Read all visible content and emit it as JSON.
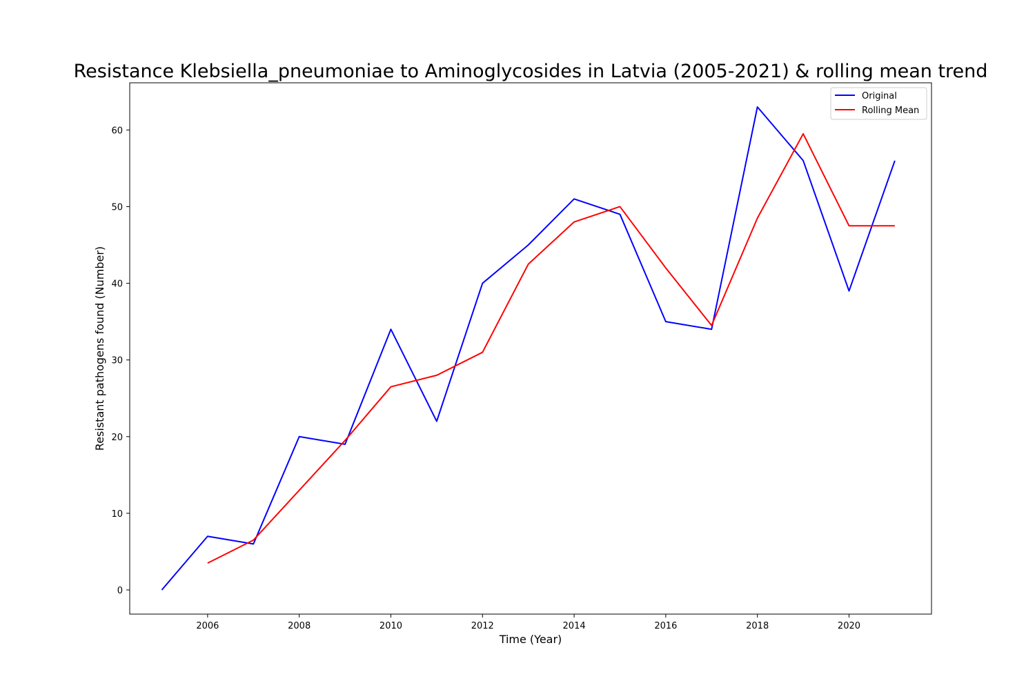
{
  "chart_data": {
    "type": "line",
    "title": "Resistance Klebsiella_pneumoniae to Aminoglycosides in Latvia (2005-2021) & rolling mean trend",
    "xlabel": "Time (Year)",
    "ylabel": "Resistant pathogens found (Number)",
    "xlim": [
      2004.3,
      2021.8
    ],
    "ylim": [
      -3.15,
      66.15
    ],
    "xticks": [
      2006,
      2008,
      2010,
      2012,
      2014,
      2016,
      2018,
      2020
    ],
    "yticks": [
      0,
      10,
      20,
      30,
      40,
      50,
      60
    ],
    "grid": false,
    "legend_position": "upper right",
    "series": [
      {
        "name": "Original",
        "color": "#0000ff",
        "x": [
          2005,
          2006,
          2007,
          2008,
          2009,
          2010,
          2011,
          2012,
          2013,
          2014,
          2015,
          2016,
          2017,
          2018,
          2019,
          2020,
          2021
        ],
        "values": [
          0,
          7,
          6,
          20,
          19,
          34,
          22,
          40,
          45,
          51,
          49,
          35,
          34,
          63,
          56,
          39,
          56
        ]
      },
      {
        "name": "Rolling Mean",
        "color": "#ff0000",
        "x": [
          2006,
          2007,
          2008,
          2009,
          2010,
          2011,
          2012,
          2013,
          2014,
          2015,
          2016,
          2017,
          2018,
          2019,
          2020,
          2021
        ],
        "values": [
          3.5,
          6.5,
          13,
          19.5,
          26.5,
          28,
          31,
          42.5,
          48,
          50,
          42,
          34.5,
          48.5,
          59.5,
          47.5,
          47.5
        ]
      }
    ]
  }
}
